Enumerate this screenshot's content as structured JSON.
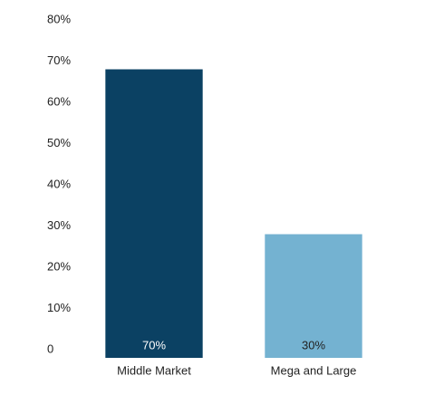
{
  "chart_data": {
    "type": "bar",
    "categories": [
      "Middle Market",
      "Mega and Large"
    ],
    "values": [
      70,
      30
    ],
    "value_labels": [
      "70%",
      "30%"
    ],
    "colors": [
      "#0b4163",
      "#74b2d1"
    ],
    "ylim": [
      0,
      80
    ],
    "yticks": [
      0,
      {
        "value": 10,
        "label": "10%"
      },
      {
        "value": 20,
        "label": "20%"
      },
      {
        "value": 30,
        "label": "30%"
      },
      {
        "value": 40,
        "label": "40%"
      },
      {
        "value": 50,
        "label": "50%"
      },
      {
        "value": 60,
        "label": "60%"
      },
      {
        "value": 70,
        "label": "70%"
      },
      {
        "value": 80,
        "label": "80%"
      }
    ],
    "grid": false
  }
}
